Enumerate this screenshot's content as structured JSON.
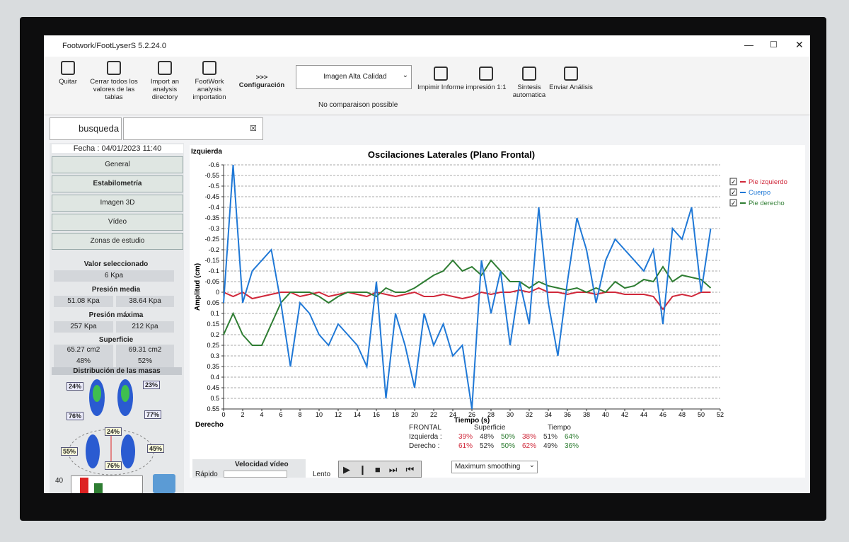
{
  "window": {
    "title": "Footwork/FootLyserS 5.2.24.0"
  },
  "toolbar": {
    "quit": "Quitar",
    "close_all": "Cerrar todos los valores de las tablas",
    "import_dir": "Import an analysis directory",
    "footwork_import": "FootWork analysis importation",
    "config_arrows": ">>>",
    "config": "Configuración",
    "quality": "Imagen Alta Calidad",
    "comparison": "No comparaison possible",
    "print_report": "Impimir Informe",
    "print_1_1": "impresión 1:1",
    "synthesis": "Sintesis automatica",
    "send": "Enviar Análisis"
  },
  "tabs": {
    "search": "busqueda"
  },
  "left_panel": {
    "date": "Fecha : 04/01/2023 11:40",
    "menu": [
      "General",
      "Estabilometría",
      "Imagen 3D",
      "Vídeo",
      "Zonas de estudio"
    ],
    "selected_label": "Valor seleccionado",
    "selected_value": "6 Kpa",
    "mean_pressure_label": "Presión media",
    "mean_pressure": [
      "51.08 Kpa",
      "38.64 Kpa"
    ],
    "max_pressure_label": "Presión máxima",
    "max_pressure": [
      "257 Kpa",
      "212 Kpa"
    ],
    "surface_label": "Superficie",
    "surface": [
      "65.27 cm2",
      "69.31 cm2"
    ],
    "surface_pct": [
      "48%",
      "52%"
    ],
    "mass_label": "Distribución de las masas",
    "mass": [
      "24%",
      "23%",
      "76%",
      "77%",
      "24%",
      "55%",
      "45%",
      "76%"
    ],
    "bar_axis": "40"
  },
  "chart": {
    "type": "line",
    "title": "Oscilaciones Laterales (Plano Frontal)",
    "top_label": "Izquierda",
    "bottom_label": "Derecho",
    "xlabel": "Tiempo (s)",
    "ylabel": "Amplitud (cm)",
    "xlim": [
      0,
      52
    ],
    "xticks": [
      0,
      2,
      4,
      6,
      8,
      10,
      12,
      14,
      16,
      18,
      20,
      22,
      24,
      26,
      28,
      30,
      32,
      34,
      36,
      38,
      40,
      42,
      44,
      46,
      48,
      50,
      52
    ],
    "ylim": [
      0.55,
      -0.6
    ],
    "yticks": [
      -0.6,
      -0.55,
      -0.5,
      -0.45,
      -0.4,
      -0.35,
      -0.3,
      -0.25,
      -0.2,
      -0.15,
      -0.1,
      -0.05,
      0,
      0.05,
      0.1,
      0.15,
      0.2,
      0.25,
      0.3,
      0.35,
      0.4,
      0.45,
      0.5,
      0.55
    ],
    "grid": true,
    "legend": "right",
    "x": [
      0,
      1,
      2,
      3,
      4,
      5,
      6,
      7,
      8,
      9,
      10,
      11,
      12,
      13,
      14,
      15,
      16,
      17,
      18,
      19,
      20,
      21,
      22,
      23,
      24,
      25,
      26,
      27,
      28,
      29,
      30,
      31,
      32,
      33,
      34,
      35,
      36,
      37,
      38,
      39,
      40,
      41,
      42,
      43,
      44,
      45,
      46,
      47,
      48,
      49,
      50,
      51
    ],
    "series": [
      {
        "name": "Pie izquierdo",
        "color": "#d0283a",
        "values": [
          0,
          0.02,
          0,
          0.03,
          0.02,
          0.01,
          0,
          0,
          0.02,
          0.01,
          0,
          0.02,
          0.01,
          0,
          0.01,
          0.02,
          0,
          0.01,
          0.02,
          0.01,
          0,
          0.02,
          0.02,
          0.01,
          0.02,
          0.03,
          0.02,
          0,
          0.01,
          0,
          0,
          -0.01,
          0,
          -0.02,
          0,
          0,
          0.01,
          0,
          0,
          0.01,
          0,
          0,
          0.01,
          0.01,
          0.01,
          0.02,
          0.08,
          0.02,
          0.01,
          0.02,
          0,
          0
        ]
      },
      {
        "name": "Cuerpo",
        "color": "#1f78d6",
        "values": [
          0.05,
          -0.6,
          0.05,
          -0.1,
          -0.15,
          -0.2,
          0.05,
          0.35,
          0.05,
          0.1,
          0.2,
          0.25,
          0.15,
          0.2,
          0.25,
          0.35,
          -0.05,
          0.5,
          0.1,
          0.25,
          0.45,
          0.1,
          0.25,
          0.15,
          0.3,
          0.25,
          0.55,
          -0.15,
          0.1,
          -0.1,
          0.25,
          -0.05,
          0.15,
          -0.4,
          0.05,
          0.3,
          -0.05,
          -0.35,
          -0.2,
          0.05,
          -0.15,
          -0.25,
          -0.2,
          -0.15,
          -0.1,
          -0.2,
          0.15,
          -0.3,
          -0.25,
          -0.4,
          0,
          -0.3
        ]
      },
      {
        "name": "Pie derecho",
        "color": "#2e7d32",
        "values": [
          0.2,
          0.1,
          0.2,
          0.25,
          0.25,
          0.15,
          0.05,
          0,
          0,
          0,
          0.02,
          0.05,
          0.02,
          0,
          0,
          0,
          0.02,
          -0.02,
          0,
          0,
          -0.02,
          -0.05,
          -0.08,
          -0.1,
          -0.15,
          -0.1,
          -0.12,
          -0.08,
          -0.15,
          -0.1,
          -0.05,
          -0.05,
          -0.02,
          -0.05,
          -0.03,
          -0.02,
          -0.01,
          -0.02,
          0,
          -0.02,
          0,
          -0.05,
          -0.02,
          -0.03,
          -0.06,
          -0.05,
          -0.12,
          -0.05,
          -0.08,
          -0.07,
          -0.06,
          -0.02
        ]
      }
    ]
  },
  "summary": {
    "head": [
      "FRONTAL",
      "Superficie",
      "Tiempo"
    ],
    "rows": [
      {
        "label": "Izquierda :",
        "values": [
          "39%",
          "48%",
          "50%",
          "38%",
          "51%",
          "64%"
        ]
      },
      {
        "label": "Derecho :",
        "values": [
          "61%",
          "52%",
          "50%",
          "62%",
          "49%",
          "36%"
        ]
      }
    ],
    "colors": [
      "#d0283a",
      "#333333",
      "#2e7d32",
      "#d0283a",
      "#333333",
      "#2e7d32"
    ]
  },
  "video": {
    "label": "Velocidad vídeo",
    "fast": "Rápido",
    "slow": "Lento",
    "smoothing": "Maximum smoothing"
  }
}
